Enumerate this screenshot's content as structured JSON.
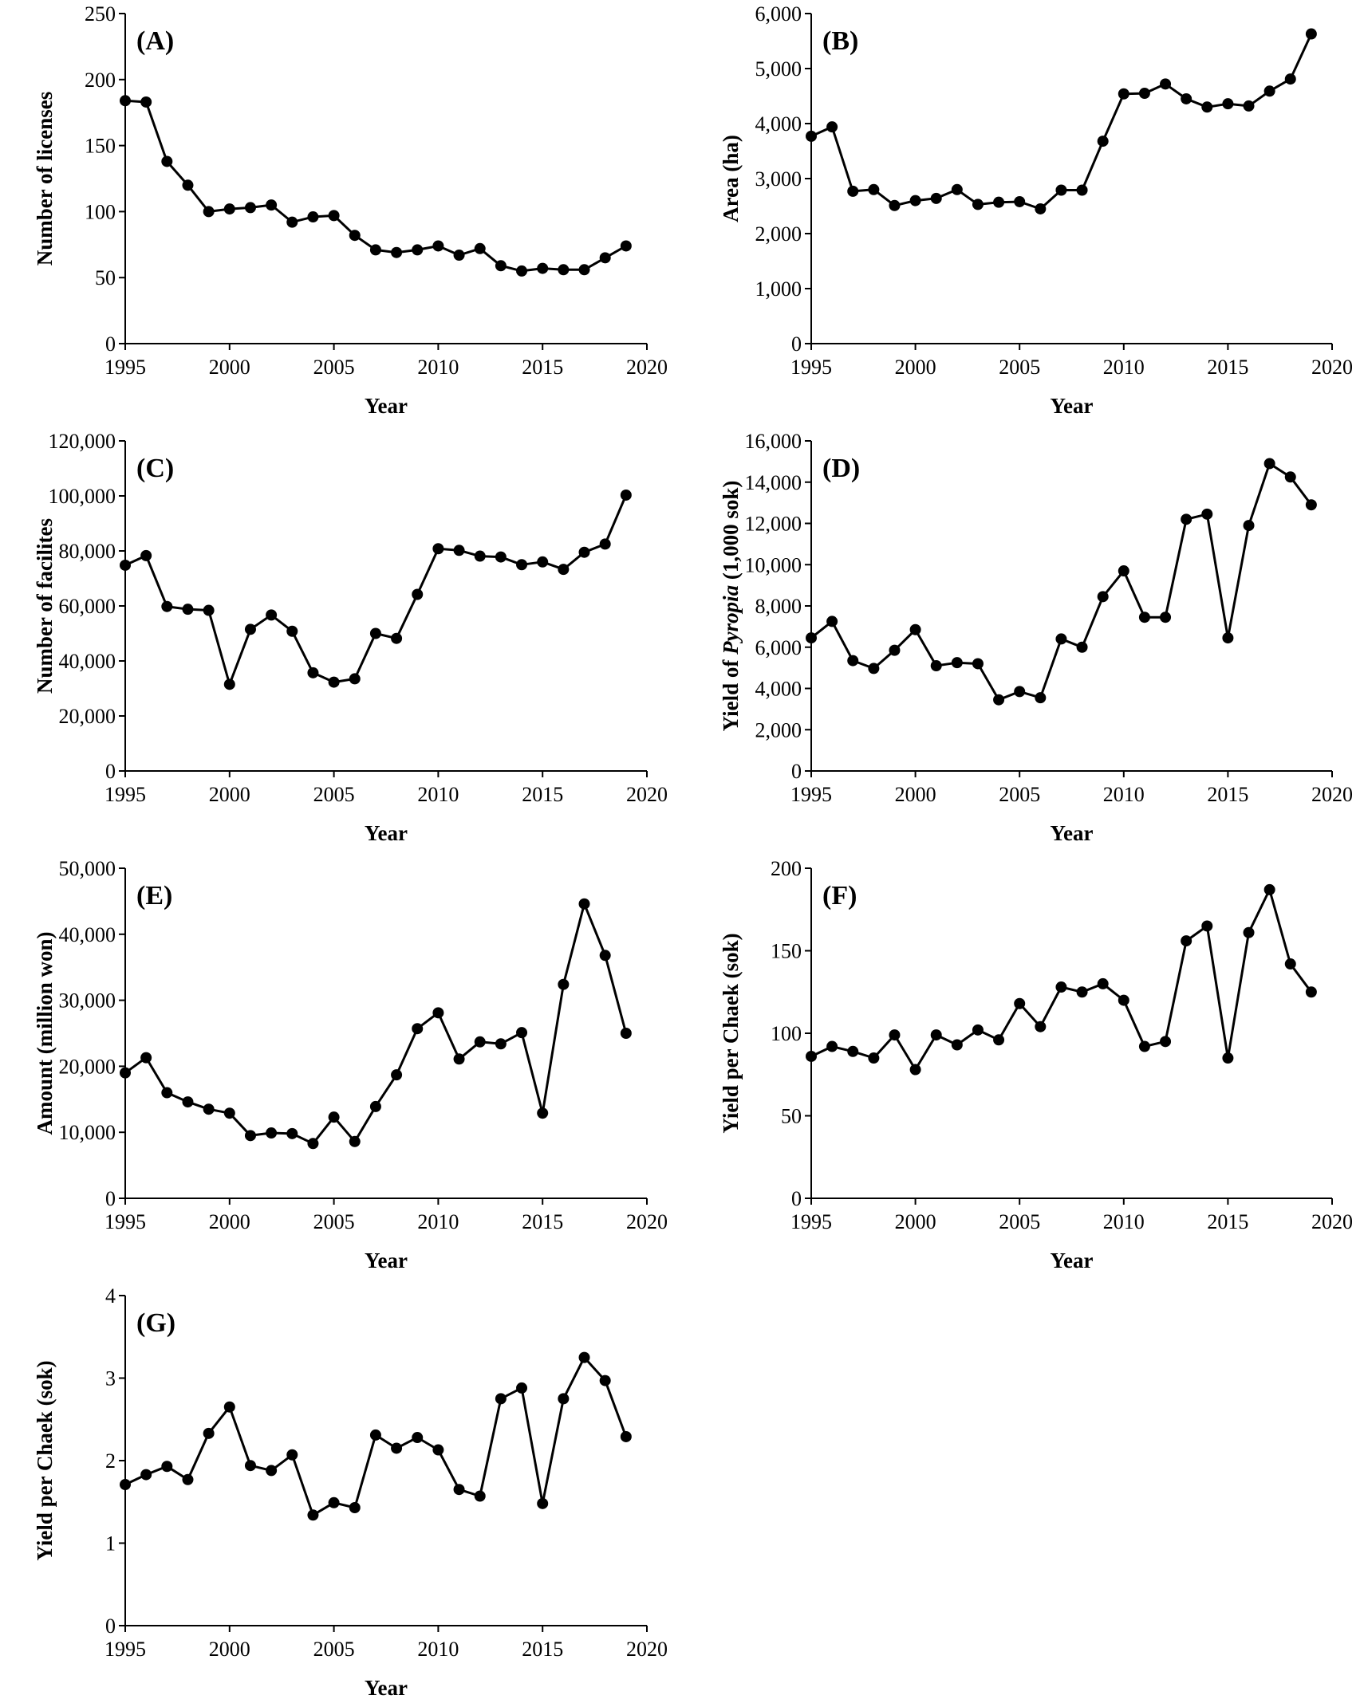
{
  "chart_data": [
    {
      "id": "A",
      "type": "line",
      "panel_label": "(A)",
      "xlabel": "Year",
      "ylabel": "Number of licenses",
      "ylabel_parts": [
        {
          "text": "Number of licenses",
          "italic": false
        }
      ],
      "xlim": [
        1995,
        2020
      ],
      "ylim": [
        0,
        250
      ],
      "xticks": [
        1995,
        2000,
        2005,
        2010,
        2015,
        2020
      ],
      "yticks": [
        0,
        50,
        100,
        150,
        200,
        250
      ],
      "x": [
        1995,
        1996,
        1997,
        1998,
        1999,
        2000,
        2001,
        2002,
        2003,
        2004,
        2005,
        2006,
        2007,
        2008,
        2009,
        2010,
        2011,
        2012,
        2013,
        2014,
        2015,
        2016,
        2017,
        2018,
        2019
      ],
      "y": [
        184,
        183,
        138,
        120,
        100,
        102,
        103,
        105,
        92,
        96,
        97,
        82,
        71,
        69,
        71,
        74,
        67,
        72,
        59,
        55,
        57,
        56,
        56,
        65,
        74
      ]
    },
    {
      "id": "B",
      "type": "line",
      "panel_label": "(B)",
      "xlabel": "Year",
      "ylabel": "Area (ha)",
      "ylabel_parts": [
        {
          "text": "Area (ha)",
          "italic": false
        }
      ],
      "xlim": [
        1995,
        2020
      ],
      "ylim": [
        0,
        6000
      ],
      "xticks": [
        1995,
        2000,
        2005,
        2010,
        2015,
        2020
      ],
      "yticks": [
        0,
        1000,
        2000,
        3000,
        4000,
        5000,
        6000
      ],
      "x": [
        1995,
        1996,
        1997,
        1998,
        1999,
        2000,
        2001,
        2002,
        2003,
        2004,
        2005,
        2006,
        2007,
        2008,
        2009,
        2010,
        2011,
        2012,
        2013,
        2014,
        2015,
        2016,
        2017,
        2018,
        2019
      ],
      "y": [
        3770,
        3940,
        2770,
        2800,
        2510,
        2600,
        2640,
        2800,
        2530,
        2570,
        2580,
        2450,
        2790,
        2790,
        3680,
        4540,
        4550,
        4720,
        4450,
        4300,
        4360,
        4320,
        4590,
        4810,
        5630
      ]
    },
    {
      "id": "C",
      "type": "line",
      "panel_label": "(C)",
      "xlabel": "Year",
      "ylabel": "Number of facilites",
      "ylabel_parts": [
        {
          "text": "Number of facilites",
          "italic": false
        }
      ],
      "xlim": [
        1995,
        2020
      ],
      "ylim": [
        0,
        120000
      ],
      "xticks": [
        1995,
        2000,
        2005,
        2010,
        2015,
        2020
      ],
      "yticks": [
        0,
        20000,
        40000,
        60000,
        80000,
        100000,
        120000
      ],
      "x": [
        1995,
        1996,
        1997,
        1998,
        1999,
        2000,
        2001,
        2002,
        2003,
        2004,
        2005,
        2006,
        2007,
        2008,
        2009,
        2010,
        2011,
        2012,
        2013,
        2014,
        2015,
        2016,
        2017,
        2018,
        2019
      ],
      "y": [
        74800,
        78300,
        59800,
        58800,
        58400,
        31500,
        51500,
        56700,
        50800,
        35700,
        32300,
        33500,
        50000,
        48200,
        64200,
        80800,
        80200,
        78100,
        77800,
        75000,
        76000,
        73300,
        79500,
        82500,
        100300
      ]
    },
    {
      "id": "D",
      "type": "line",
      "panel_label": "(D)",
      "xlabel": "Year",
      "ylabel": "Yield of Pyropia (1,000 sok)",
      "ylabel_parts": [
        {
          "text": "Yield of ",
          "italic": false
        },
        {
          "text": "Pyropia",
          "italic": true
        },
        {
          "text": " (1,000 sok)",
          "italic": false
        }
      ],
      "xlim": [
        1995,
        2020
      ],
      "ylim": [
        0,
        16000
      ],
      "xticks": [
        1995,
        2000,
        2005,
        2010,
        2015,
        2020
      ],
      "yticks": [
        0,
        2000,
        4000,
        6000,
        8000,
        10000,
        12000,
        14000,
        16000
      ],
      "x": [
        1995,
        1996,
        1997,
        1998,
        1999,
        2000,
        2001,
        2002,
        2003,
        2004,
        2005,
        2006,
        2007,
        2008,
        2009,
        2010,
        2011,
        2012,
        2013,
        2014,
        2015,
        2016,
        2017,
        2018,
        2019
      ],
      "y": [
        6450,
        7250,
        5350,
        4970,
        5850,
        6850,
        5100,
        5250,
        5200,
        3450,
        3850,
        3550,
        6400,
        6000,
        8450,
        9700,
        7450,
        7450,
        12200,
        12450,
        6450,
        11900,
        14900,
        14250,
        12900
      ]
    },
    {
      "id": "E",
      "type": "line",
      "panel_label": "(E)",
      "xlabel": "Year",
      "ylabel": "Amount (million won)",
      "ylabel_parts": [
        {
          "text": "Amount (million won)",
          "italic": false
        }
      ],
      "xlim": [
        1995,
        2020
      ],
      "ylim": [
        0,
        50000
      ],
      "xticks": [
        1995,
        2000,
        2005,
        2010,
        2015,
        2020
      ],
      "yticks": [
        0,
        10000,
        20000,
        30000,
        40000,
        50000
      ],
      "x": [
        1995,
        1996,
        1997,
        1998,
        1999,
        2000,
        2001,
        2002,
        2003,
        2004,
        2005,
        2006,
        2007,
        2008,
        2009,
        2010,
        2011,
        2012,
        2013,
        2014,
        2015,
        2016,
        2017,
        2018,
        2019
      ],
      "y": [
        19000,
        21300,
        16000,
        14600,
        13500,
        12900,
        9500,
        9900,
        9800,
        8300,
        12300,
        8600,
        13900,
        18700,
        25700,
        28100,
        21100,
        23700,
        23400,
        25100,
        12900,
        32400,
        44600,
        36800,
        25000
      ]
    },
    {
      "id": "F",
      "type": "line",
      "panel_label": "(F)",
      "xlabel": "Year",
      "ylabel": "Yield per Chaek (sok)",
      "ylabel_parts": [
        {
          "text": "Yield per Chaek (sok)",
          "italic": false
        }
      ],
      "xlim": [
        1995,
        2020
      ],
      "ylim": [
        0,
        200
      ],
      "xticks": [
        1995,
        2000,
        2005,
        2010,
        2015,
        2020
      ],
      "yticks": [
        0,
        50,
        100,
        150,
        200
      ],
      "x": [
        1995,
        1996,
        1997,
        1998,
        1999,
        2000,
        2001,
        2002,
        2003,
        2004,
        2005,
        2006,
        2007,
        2008,
        2009,
        2010,
        2011,
        2012,
        2013,
        2014,
        2015,
        2016,
        2017,
        2018,
        2019
      ],
      "y": [
        86,
        92,
        89,
        85,
        99,
        78,
        99,
        93,
        102,
        96,
        118,
        104,
        128,
        125,
        130,
        120,
        92,
        95,
        156,
        165,
        85,
        161,
        187,
        142,
        125
      ]
    },
    {
      "id": "G",
      "type": "line",
      "panel_label": "(G)",
      "xlabel": "Year",
      "ylabel": "Yield per Chaek (sok)",
      "ylabel_parts": [
        {
          "text": "Yield per Chaek (sok)",
          "italic": false
        }
      ],
      "xlim": [
        1995,
        2020
      ],
      "ylim": [
        0,
        4
      ],
      "xticks": [
        1995,
        2000,
        2005,
        2010,
        2015,
        2020
      ],
      "yticks": [
        0,
        1,
        2,
        3,
        4
      ],
      "x": [
        1995,
        1996,
        1997,
        1998,
        1999,
        2000,
        2001,
        2002,
        2003,
        2004,
        2005,
        2006,
        2007,
        2008,
        2009,
        2010,
        2011,
        2012,
        2013,
        2014,
        2015,
        2016,
        2017,
        2018,
        2019
      ],
      "y": [
        1.71,
        1.83,
        1.93,
        1.77,
        2.33,
        2.65,
        1.94,
        1.88,
        2.07,
        1.34,
        1.49,
        1.43,
        2.31,
        2.15,
        2.28,
        2.13,
        1.65,
        1.57,
        2.75,
        2.88,
        1.48,
        2.75,
        3.25,
        2.97,
        2.29
      ]
    }
  ]
}
